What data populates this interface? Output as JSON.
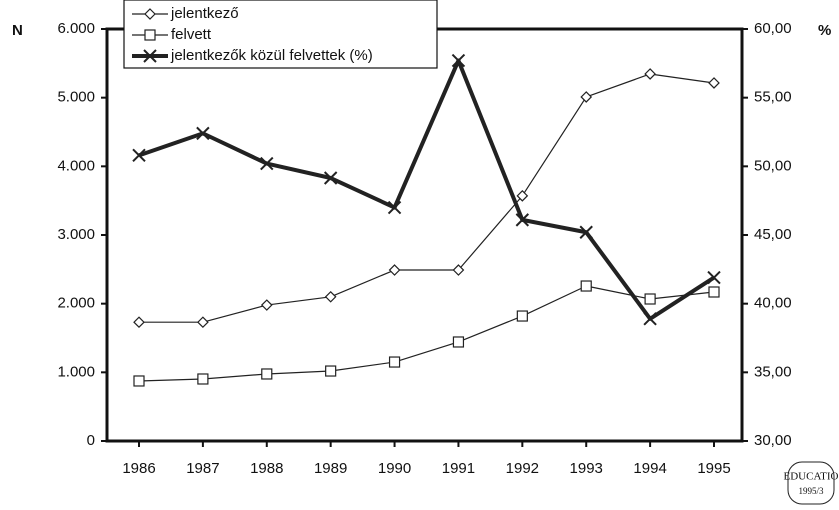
{
  "chart_data": {
    "type": "line",
    "categories": [
      "1986",
      "1987",
      "1988",
      "1989",
      "1990",
      "1991",
      "1992",
      "1993",
      "1994",
      "1995"
    ],
    "y_label": "N",
    "y2_label": "%",
    "series": [
      {
        "name": "jelentkező",
        "color": "#222222",
        "marker": "diamond",
        "values": [
          1730,
          1730,
          1980,
          2100,
          2490,
          2490,
          3570,
          5010,
          5345,
          5214
        ]
      },
      {
        "name": "felvett",
        "color": "#222222",
        "marker": "square",
        "values": [
          874,
          903,
          976,
          1019,
          1150,
          1442,
          1820,
          2257,
          2068,
          2170
        ]
      },
      {
        "name": "jelentkezők közül felvettek (%)",
        "color": "#222222",
        "marker": "cross",
        "axis": "y2",
        "values": [
          50.8,
          52.4,
          50.2,
          49.15,
          47.0,
          57.7,
          46.1,
          45.2,
          38.9,
          41.9
        ]
      }
    ],
    "ylim": [
      0,
      6000
    ],
    "yticks": [
      {
        "value": 0,
        "label": "0"
      },
      {
        "value": 1000,
        "label": "1.000"
      },
      {
        "value": 2000,
        "label": "2.000"
      },
      {
        "value": 3000,
        "label": "3.000"
      },
      {
        "value": 4000,
        "label": "4.000"
      },
      {
        "value": 5000,
        "label": "5.000"
      },
      {
        "value": 6000,
        "label": "6.000"
      }
    ],
    "y2lim": [
      30,
      60
    ],
    "y2ticks": [
      {
        "value": 30,
        "label": "30,00"
      },
      {
        "value": 35,
        "label": "35,00"
      },
      {
        "value": 40,
        "label": "40,00"
      },
      {
        "value": 45,
        "label": "45,00"
      },
      {
        "value": 50,
        "label": "50,00"
      },
      {
        "value": 55,
        "label": "55,00"
      },
      {
        "value": 60,
        "label": "60,00"
      }
    ],
    "legend": "top-left",
    "badge": [
      "EDUCATIO",
      "1995/3"
    ]
  }
}
